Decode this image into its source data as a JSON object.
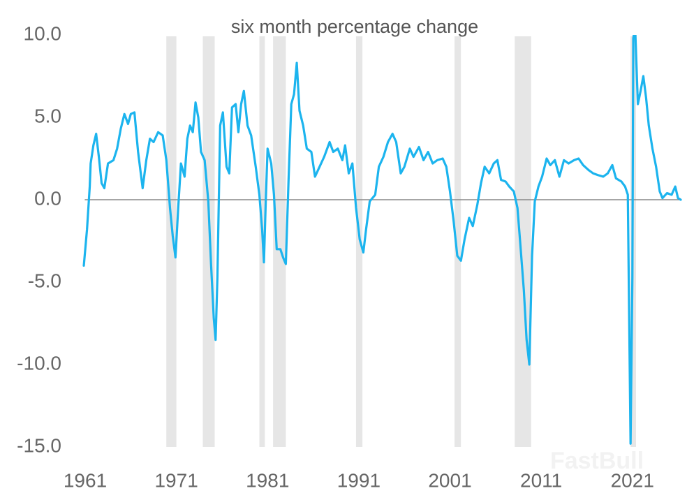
{
  "chart_data": {
    "type": "line",
    "title": "six month percentage change",
    "watermark": "FastBull",
    "color": "#1cb4ee",
    "recession_color": "#e6e6e6",
    "zero_line": true,
    "xlim": [
      1960.8,
      2026.3
    ],
    "xticks": [
      1961,
      1971,
      1981,
      1991,
      2001,
      2011,
      2021
    ],
    "ylim": [
      -15,
      10
    ],
    "yticks": [
      {
        "value": -15,
        "label": "-15.0"
      },
      {
        "value": -10,
        "label": "-10.0"
      },
      {
        "value": -5,
        "label": "-5.0"
      },
      {
        "value": 0,
        "label": "0.0"
      },
      {
        "value": 5,
        "label": "5.0"
      },
      {
        "value": 10,
        "label": "10.0"
      }
    ],
    "recessions": [
      [
        1969.9,
        1971.0
      ],
      [
        1973.9,
        1975.2
      ],
      [
        1980.1,
        1980.7
      ],
      [
        1981.6,
        1983.0
      ],
      [
        1990.7,
        1991.4
      ],
      [
        2001.5,
        2002.2
      ],
      [
        2008.1,
        2009.9
      ],
      [
        2020.8,
        2021.4
      ]
    ],
    "x": [
      1960.85,
      1961.2,
      1961.5,
      1961.6,
      1961.9,
      1962.2,
      1962.5,
      1962.8,
      1963.1,
      1963.5,
      1964.1,
      1964.5,
      1964.9,
      1965.3,
      1965.7,
      1966.0,
      1966.4,
      1966.8,
      1967.3,
      1967.7,
      1968.1,
      1968.5,
      1969.0,
      1969.5,
      1969.9,
      1970.3,
      1970.6,
      1970.9,
      1971.2,
      1971.5,
      1971.9,
      1972.2,
      1972.5,
      1972.8,
      1973.1,
      1973.4,
      1973.7,
      1974.1,
      1974.5,
      1974.8,
      1975.1,
      1975.3,
      1975.5,
      1975.8,
      1976.1,
      1976.5,
      1976.8,
      1977.1,
      1977.5,
      1977.8,
      1978.1,
      1978.4,
      1978.8,
      1979.2,
      1979.7,
      1980.1,
      1980.4,
      1980.6,
      1980.8,
      1981.0,
      1981.4,
      1981.7,
      1982.0,
      1982.4,
      1982.7,
      1983.0,
      1983.3,
      1983.6,
      1983.9,
      1984.2,
      1984.5,
      1984.9,
      1985.3,
      1985.8,
      1986.2,
      1986.7,
      1987.2,
      1987.8,
      1988.2,
      1988.7,
      1989.2,
      1989.5,
      1989.9,
      1990.3,
      1990.7,
      1991.1,
      1991.5,
      1991.8,
      1992.2,
      1992.8,
      1993.2,
      1993.7,
      1994.2,
      1994.7,
      1995.1,
      1995.6,
      1996.0,
      1996.6,
      1997.0,
      1997.6,
      1998.1,
      1998.6,
      1999.1,
      1999.6,
      2000.2,
      2000.6,
      2001.0,
      2001.4,
      2001.8,
      2002.2,
      2002.6,
      2003.1,
      2003.5,
      2004.0,
      2004.4,
      2004.8,
      2005.3,
      2005.8,
      2006.2,
      2006.6,
      2007.1,
      2007.5,
      2008.0,
      2008.4,
      2008.7,
      2009.1,
      2009.4,
      2009.7,
      2010.0,
      2010.3,
      2010.7,
      2011.1,
      2011.6,
      2012.0,
      2012.5,
      2013.0,
      2013.5,
      2014.0,
      2014.6,
      2015.1,
      2015.6,
      2016.2,
      2016.7,
      2017.2,
      2017.8,
      2018.3,
      2018.8,
      2019.2,
      2019.8,
      2020.2,
      2020.5,
      2020.8,
      2021.0,
      2021.1,
      2021.3,
      2021.6,
      2021.9,
      2022.2,
      2022.5,
      2022.8,
      2023.2,
      2023.6,
      2024.0,
      2024.3,
      2024.8,
      2025.3,
      2025.7,
      2026.0,
      2026.3
    ],
    "values": [
      -4.0,
      -1.8,
      0.8,
      2.2,
      3.3,
      4.0,
      2.6,
      1.0,
      0.7,
      2.2,
      2.4,
      3.1,
      4.3,
      5.2,
      4.6,
      5.2,
      5.3,
      2.9,
      0.7,
      2.4,
      3.7,
      3.5,
      4.1,
      3.9,
      2.4,
      -0.5,
      -2.2,
      -3.5,
      -0.5,
      2.2,
      1.4,
      3.7,
      4.5,
      4.1,
      5.9,
      5.0,
      2.9,
      2.4,
      -0.1,
      -3.9,
      -7.2,
      -8.5,
      -4.7,
      4.5,
      5.3,
      2.0,
      1.6,
      5.6,
      5.8,
      4.1,
      5.8,
      6.6,
      4.5,
      3.9,
      2.0,
      0.3,
      -1.8,
      -3.8,
      -0.1,
      3.1,
      2.2,
      0.3,
      -3.0,
      -3.0,
      -3.5,
      -3.9,
      1.2,
      5.8,
      6.4,
      8.3,
      5.4,
      4.5,
      3.1,
      2.9,
      1.4,
      2.0,
      2.6,
      3.5,
      2.9,
      3.1,
      2.4,
      3.3,
      1.6,
      2.2,
      -0.5,
      -2.4,
      -3.2,
      -1.8,
      -0.1,
      0.3,
      2.0,
      2.6,
      3.5,
      4.0,
      3.5,
      1.6,
      2.0,
      3.1,
      2.6,
      3.2,
      2.4,
      2.9,
      2.2,
      2.4,
      2.5,
      2.0,
      0.5,
      -1.3,
      -3.4,
      -3.7,
      -2.4,
      -1.1,
      -1.6,
      -0.3,
      1.0,
      2.0,
      1.6,
      2.2,
      2.4,
      1.2,
      1.1,
      0.8,
      0.5,
      -0.5,
      -2.6,
      -5.5,
      -8.5,
      -10.0,
      -3.4,
      -0.1,
      0.8,
      1.4,
      2.5,
      2.1,
      2.4,
      1.4,
      2.4,
      2.2,
      2.4,
      2.5,
      2.1,
      1.8,
      1.6,
      1.5,
      1.4,
      1.6,
      2.1,
      1.3,
      1.1,
      0.8,
      0.3,
      -14.8,
      -4.7,
      9.8,
      10.5,
      5.8,
      6.6,
      7.5,
      6.2,
      4.5,
      3.1,
      2.0,
      0.5,
      0.1,
      0.4,
      0.3,
      0.8,
      0.1,
      0.0
    ]
  }
}
